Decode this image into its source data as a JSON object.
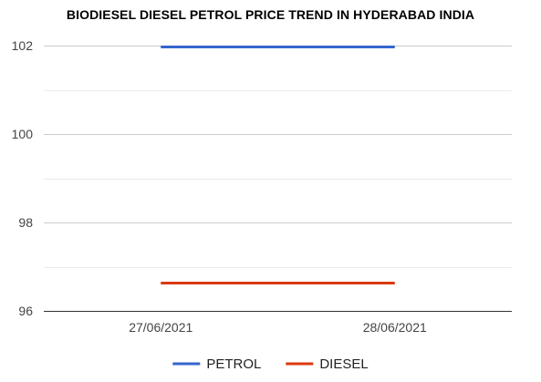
{
  "chart_data": {
    "type": "line",
    "title": "BIODIESEL DIESEL PETROL PRICE TREND IN HYDERABAD INDIA",
    "xlabel": "",
    "ylabel": "",
    "categories": [
      "27/06/2021",
      "28/06/2021"
    ],
    "series": [
      {
        "name": "PETROL",
        "color": "#3366cc",
        "values": [
          101.97,
          101.97
        ]
      },
      {
        "name": "DIESEL",
        "color": "#dc3912",
        "values": [
          96.63,
          96.63
        ]
      }
    ],
    "ylim": [
      96,
      102
    ],
    "yticks": [
      96,
      98,
      100,
      102
    ],
    "grid": true,
    "legend_position": "bottom"
  }
}
